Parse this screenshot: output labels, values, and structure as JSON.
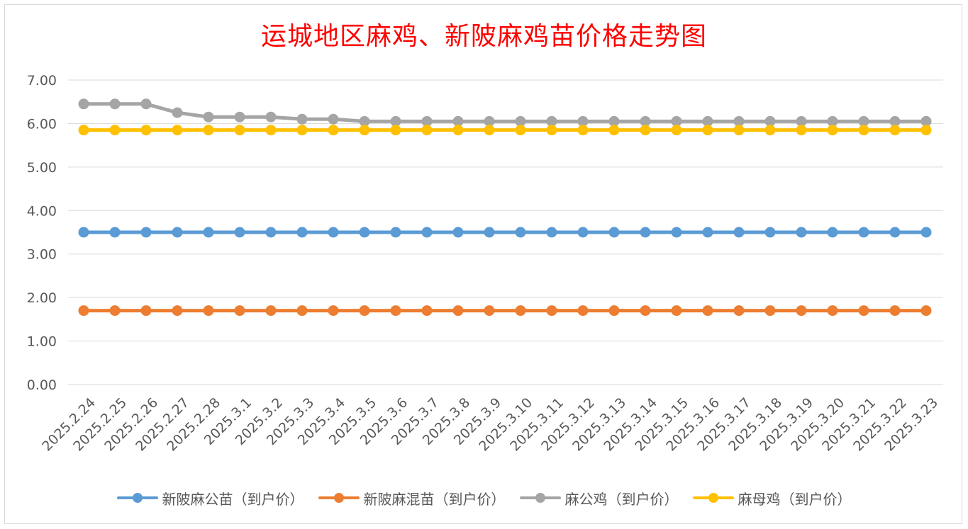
{
  "chart_data": {
    "type": "line",
    "title": "运城地区麻鸡、新陂麻鸡苗价格走势图",
    "xlabel": "",
    "ylabel": "",
    "ylim": [
      0,
      7
    ],
    "yticks": [
      "0.00",
      "1.00",
      "2.00",
      "3.00",
      "4.00",
      "5.00",
      "6.00",
      "7.00"
    ],
    "grid": true,
    "legend_position": "bottom",
    "categories": [
      "2025.2.24",
      "2025.2.25",
      "2025.2.26",
      "2025.2.27",
      "2025.2.28",
      "2025.3.1",
      "2025.3.2",
      "2025.3.3",
      "2025.3.4",
      "2025.3.5",
      "2025.3.6",
      "2025.3.7",
      "2025.3.8",
      "2025.3.9",
      "2025.3.10",
      "2025.3.11",
      "2025.3.12",
      "2025.3.13",
      "2025.3.14",
      "2025.3.15",
      "2025.3.16",
      "2025.3.17",
      "2025.3.18",
      "2025.3.19",
      "2025.3.20",
      "2025.3.21",
      "2025.3.22",
      "2025.3.23"
    ],
    "series": [
      {
        "name": "新陂麻公苗（到户价）",
        "color": "#5b9bd5",
        "values": [
          3.5,
          3.5,
          3.5,
          3.5,
          3.5,
          3.5,
          3.5,
          3.5,
          3.5,
          3.5,
          3.5,
          3.5,
          3.5,
          3.5,
          3.5,
          3.5,
          3.5,
          3.5,
          3.5,
          3.5,
          3.5,
          3.5,
          3.5,
          3.5,
          3.5,
          3.5,
          3.5,
          3.5
        ]
      },
      {
        "name": "新陂麻混苗（到户价）",
        "color": "#ed7d31",
        "values": [
          1.7,
          1.7,
          1.7,
          1.7,
          1.7,
          1.7,
          1.7,
          1.7,
          1.7,
          1.7,
          1.7,
          1.7,
          1.7,
          1.7,
          1.7,
          1.7,
          1.7,
          1.7,
          1.7,
          1.7,
          1.7,
          1.7,
          1.7,
          1.7,
          1.7,
          1.7,
          1.7,
          1.7
        ]
      },
      {
        "name": "麻公鸡（到户价）",
        "color": "#a5a5a5",
        "values": [
          6.45,
          6.45,
          6.45,
          6.25,
          6.15,
          6.15,
          6.15,
          6.1,
          6.1,
          6.05,
          6.05,
          6.05,
          6.05,
          6.05,
          6.05,
          6.05,
          6.05,
          6.05,
          6.05,
          6.05,
          6.05,
          6.05,
          6.05,
          6.05,
          6.05,
          6.05,
          6.05,
          6.05
        ]
      },
      {
        "name": "麻母鸡（到户价）",
        "color": "#ffc000",
        "values": [
          5.85,
          5.85,
          5.85,
          5.85,
          5.85,
          5.85,
          5.85,
          5.85,
          5.85,
          5.85,
          5.85,
          5.85,
          5.85,
          5.85,
          5.85,
          5.85,
          5.85,
          5.85,
          5.85,
          5.85,
          5.85,
          5.85,
          5.85,
          5.85,
          5.85,
          5.85,
          5.85,
          5.85
        ]
      }
    ]
  }
}
